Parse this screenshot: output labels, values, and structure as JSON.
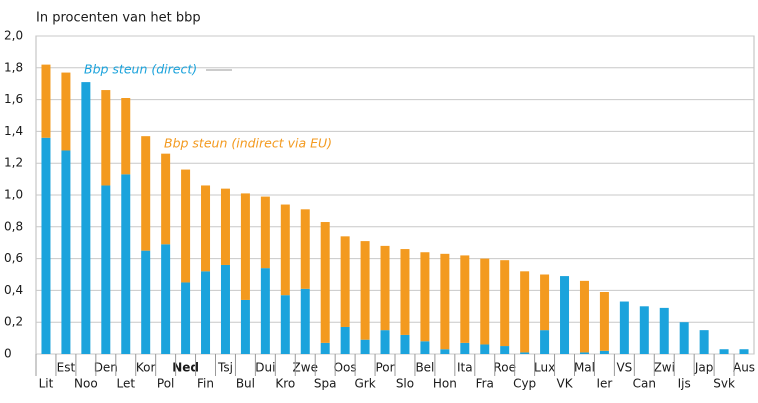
{
  "chart_data": {
    "type": "stacked_bar",
    "title": "In procenten van het bbp",
    "categories": [
      "Lit",
      "Est",
      "Noo",
      "Den",
      "Let",
      "Kor",
      "Pol",
      "Ned",
      "Fin",
      "Tsj",
      "Bul",
      "Dui",
      "Kro",
      "Zwe",
      "Spa",
      "Oos",
      "Grk",
      "Por",
      "Slo",
      "Bel",
      "Hon",
      "Ita",
      "Fra",
      "Roe",
      "Cyp",
      "Lux",
      "VK",
      "Mal",
      "Ier",
      "VS",
      "Can",
      "Zwi",
      "Ijs",
      "Jap",
      "Svk",
      "Aus"
    ],
    "series": [
      {
        "name": "Bbp steun (direct)",
        "color": "#1ba3dc",
        "values": [
          1.36,
          1.28,
          1.71,
          1.06,
          1.13,
          0.65,
          0.69,
          0.45,
          0.52,
          0.56,
          0.34,
          0.54,
          0.37,
          0.41,
          0.07,
          0.17,
          0.09,
          0.15,
          0.12,
          0.08,
          0.03,
          0.07,
          0.06,
          0.05,
          0.01,
          0.15,
          0.49,
          0.01,
          0.02,
          0.33,
          0.3,
          0.29,
          0.2,
          0.15,
          0.03,
          0.03
        ]
      },
      {
        "name": "Bbp steun (indirect via EU)",
        "color": "#f39a1f",
        "values": [
          0.46,
          0.49,
          0,
          0.6,
          0.48,
          0.72,
          0.57,
          0.71,
          0.54,
          0.48,
          0.67,
          0.45,
          0.57,
          0.5,
          0.76,
          0.57,
          0.62,
          0.53,
          0.54,
          0.56,
          0.6,
          0.55,
          0.54,
          0.54,
          0.51,
          0.35,
          0,
          0.45,
          0.37,
          0,
          0,
          0,
          0,
          0,
          0,
          0
        ]
      }
    ],
    "ylim": [
      0,
      2
    ],
    "yticks": [
      0,
      {
        "value": 0.2,
        "label": "0,2"
      },
      {
        "value": 0.4,
        "label": "0,4"
      },
      {
        "value": 0.6,
        "label": "0,6"
      },
      {
        "value": 0.8,
        "label": "0,8"
      },
      {
        "value": 1.0,
        "label": "1,0"
      },
      {
        "value": 1.2,
        "label": "1,2"
      },
      {
        "value": 1.4,
        "label": "1,4"
      },
      {
        "value": 1.6,
        "label": "1,6"
      },
      {
        "value": 1.8,
        "label": "1,8"
      },
      {
        "value": 2.0,
        "label": "2,0"
      }
    ],
    "grid": true
  }
}
